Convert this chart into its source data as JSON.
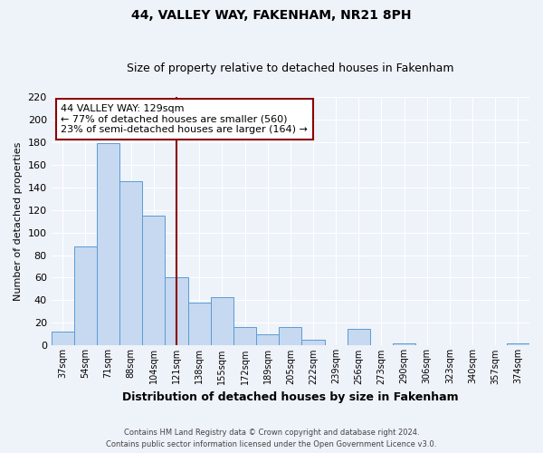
{
  "title": "44, VALLEY WAY, FAKENHAM, NR21 8PH",
  "subtitle": "Size of property relative to detached houses in Fakenham",
  "xlabel": "Distribution of detached houses by size in Fakenham",
  "ylabel": "Number of detached properties",
  "bin_labels": [
    "37sqm",
    "54sqm",
    "71sqm",
    "88sqm",
    "104sqm",
    "121sqm",
    "138sqm",
    "155sqm",
    "172sqm",
    "189sqm",
    "205sqm",
    "222sqm",
    "239sqm",
    "256sqm",
    "273sqm",
    "290sqm",
    "306sqm",
    "323sqm",
    "340sqm",
    "357sqm",
    "374sqm"
  ],
  "bar_values": [
    12,
    88,
    179,
    145,
    115,
    60,
    38,
    43,
    16,
    10,
    16,
    5,
    0,
    15,
    0,
    2,
    0,
    0,
    0,
    0,
    2
  ],
  "bar_color": "#c6d9f0",
  "bar_edge_color": "#5b9bd5",
  "vline_x": 5,
  "vline_color": "#8b0000",
  "ylim": [
    0,
    220
  ],
  "yticks": [
    0,
    20,
    40,
    60,
    80,
    100,
    120,
    140,
    160,
    180,
    200,
    220
  ],
  "annotation_text": "44 VALLEY WAY: 129sqm\n← 77% of detached houses are smaller (560)\n23% of semi-detached houses are larger (164) →",
  "annotation_box_color": "#ffffff",
  "annotation_box_edge_color": "#8b0000",
  "footer_line1": "Contains HM Land Registry data © Crown copyright and database right 2024.",
  "footer_line2": "Contains public sector information licensed under the Open Government Licence v3.0.",
  "background_color": "#eef2f9",
  "grid_color": "#ffffff",
  "title_fontsize": 10,
  "subtitle_fontsize": 9,
  "ylabel_fontsize": 8,
  "xlabel_fontsize": 9
}
